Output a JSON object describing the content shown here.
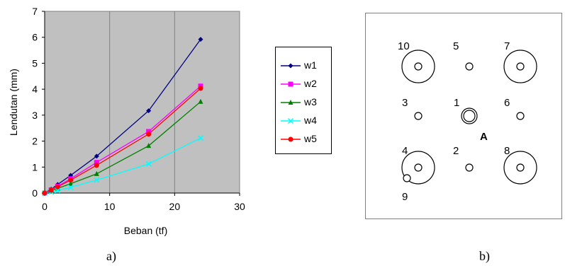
{
  "chart_data": {
    "type": "line",
    "xlabel": "Beban (tf)",
    "ylabel": "Lendutan (mm)",
    "xlim": [
      0,
      30
    ],
    "ylim": [
      0,
      7
    ],
    "x_ticks": [
      "0",
      "10",
      "20",
      "30"
    ],
    "y_ticks": [
      "0",
      "1",
      "2",
      "3",
      "4",
      "5",
      "6",
      "7"
    ],
    "grid": "vertical",
    "legend_position": "right",
    "x": [
      0,
      1,
      2,
      4,
      8,
      16,
      24
    ],
    "series": [
      {
        "name": "w1",
        "color": "#000080",
        "marker": "diamond",
        "values": [
          0,
          0.15,
          0.33,
          0.68,
          1.42,
          3.17,
          5.92
        ]
      },
      {
        "name": "w2",
        "color": "#ff00ff",
        "marker": "square",
        "values": [
          0,
          0.12,
          0.26,
          0.55,
          1.18,
          2.37,
          4.12
        ]
      },
      {
        "name": "w3",
        "color": "#008000",
        "marker": "triangle",
        "values": [
          0,
          0.09,
          0.18,
          0.36,
          0.74,
          1.82,
          3.52
        ]
      },
      {
        "name": "w4",
        "color": "#00ffff",
        "marker": "x",
        "values": [
          0,
          0.05,
          0.1,
          0.22,
          0.5,
          1.12,
          2.12
        ]
      },
      {
        "name": "w5",
        "color": "#ff0000",
        "marker": "circle",
        "values": [
          0,
          0.11,
          0.24,
          0.5,
          1.07,
          2.27,
          4.03
        ]
      }
    ]
  },
  "caption_a": "a)",
  "caption_b": "b)",
  "diagram": {
    "labels": [
      "10",
      "5",
      "7",
      "3",
      "1",
      "6",
      "4",
      "2",
      "8",
      "9"
    ],
    "marker_label": "A"
  }
}
